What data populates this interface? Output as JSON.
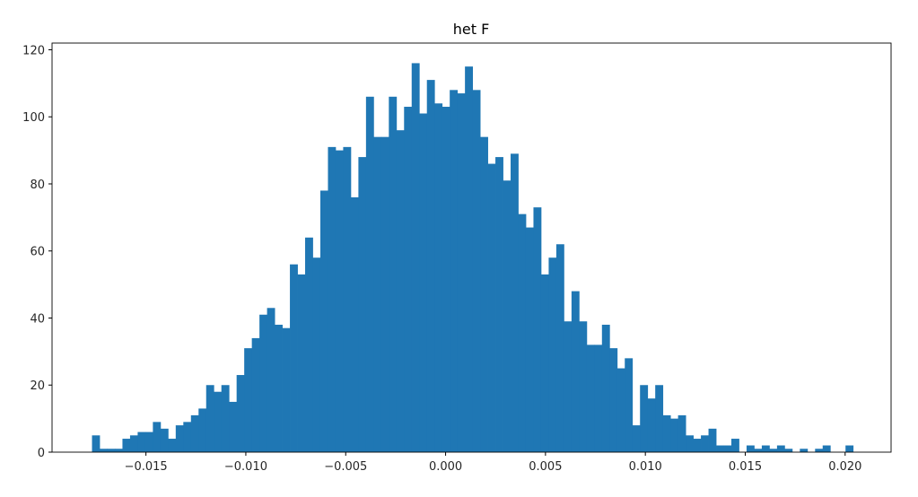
{
  "chart_data": {
    "type": "bar",
    "subtype": "histogram",
    "title": "het F",
    "xlabel": "",
    "ylabel": "",
    "bin_range": [
      -0.0177,
      0.0204
    ],
    "bins": 100,
    "counts": [
      5,
      1,
      1,
      1,
      4,
      5,
      6,
      6,
      9,
      7,
      4,
      8,
      9,
      11,
      13,
      20,
      18,
      20,
      15,
      23,
      31,
      34,
      41,
      43,
      38,
      37,
      56,
      53,
      64,
      58,
      78,
      91,
      90,
      91,
      76,
      88,
      106,
      94,
      94,
      106,
      96,
      103,
      116,
      101,
      111,
      104,
      103,
      108,
      107,
      115,
      108,
      94,
      86,
      88,
      81,
      89,
      71,
      67,
      73,
      53,
      58,
      62,
      39,
      48,
      39,
      32,
      32,
      38,
      31,
      25,
      28,
      8,
      20,
      16,
      20,
      11,
      10,
      11,
      5,
      4,
      5,
      7,
      2,
      2,
      4,
      0,
      2,
      1,
      2,
      1,
      2,
      1,
      0,
      1,
      0,
      1,
      2,
      0,
      0,
      2
    ],
    "xlim": [
      -0.0197,
      0.0223
    ],
    "ylim": [
      0,
      122
    ],
    "xticks": [
      -0.015,
      -0.01,
      -0.005,
      0.0,
      0.005,
      0.01,
      0.015,
      0.02
    ],
    "xtick_labels": [
      "−0.015",
      "−0.010",
      "−0.005",
      "0.000",
      "0.005",
      "0.010",
      "0.015",
      "0.020"
    ],
    "yticks": [
      0,
      20,
      40,
      60,
      80,
      100,
      120
    ],
    "ytick_labels": [
      "0",
      "20",
      "40",
      "60",
      "80",
      "100",
      "120"
    ],
    "grid": false,
    "legend": "none",
    "color": "#1f77b4"
  }
}
